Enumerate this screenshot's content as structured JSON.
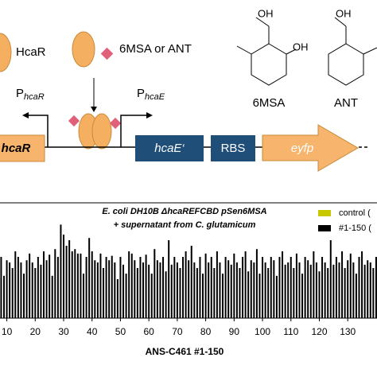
{
  "diagram": {
    "regulator": "HcaR",
    "ligand": "6MSA or ANT",
    "promoter_left": {
      "main": "P",
      "sub": "hcaR"
    },
    "promoter_right": {
      "main": "P",
      "sub": "hcaE"
    },
    "genes": [
      "hcaR",
      "hcaE‘",
      "RBS",
      "eyfp"
    ],
    "compound_1": {
      "hydroxyls": [
        "OH",
        "OH"
      ],
      "name": "6MSA"
    },
    "compound_2": {
      "hydroxyls": [
        "OH"
      ],
      "name": "ANT"
    }
  },
  "chart_data": {
    "type": "bar",
    "title": [
      "E. coli DH10B ΔhcaREFCBD pSen6MSA",
      "+ supernatant from C. glutamicum"
    ],
    "xlabel": "ANS-C461 #1-150",
    "legend": [
      {
        "label": "control (",
        "color": "#c8c800"
      },
      {
        "label": "#1-150 (",
        "color": "#000000"
      }
    ],
    "x": [
      8,
      9,
      10,
      11,
      12,
      13,
      14,
      15,
      16,
      17,
      18,
      19,
      20,
      21,
      22,
      23,
      24,
      25,
      26,
      27,
      28,
      29,
      30,
      31,
      32,
      33,
      34,
      35,
      36,
      37,
      38,
      39,
      40,
      41,
      42,
      43,
      44,
      45,
      46,
      47,
      48,
      49,
      50,
      51,
      52,
      53,
      54,
      55,
      56,
      57,
      58,
      59,
      60,
      61,
      62,
      63,
      64,
      65,
      66,
      67,
      68,
      69,
      70,
      71,
      72,
      73,
      74,
      75,
      76,
      77,
      78,
      79,
      80,
      81,
      82,
      83,
      84,
      85,
      86,
      87,
      88,
      89,
      90,
      91,
      92,
      93,
      94,
      95,
      96,
      97,
      98,
      99,
      100,
      101,
      102,
      103,
      104,
      105,
      106,
      107,
      108,
      109,
      110,
      111,
      112,
      113,
      114,
      115,
      116,
      117,
      118,
      119,
      120,
      121,
      122,
      123,
      124,
      125,
      126,
      127,
      128,
      129,
      130,
      131,
      132,
      133,
      134,
      135,
      136,
      137,
      138,
      139,
      140
    ],
    "values": [
      55,
      38,
      52,
      50,
      45,
      60,
      55,
      50,
      40,
      52,
      58,
      50,
      45,
      55,
      48,
      60,
      52,
      57,
      38,
      62,
      55,
      84,
      75,
      65,
      70,
      60,
      62,
      58,
      58,
      40,
      55,
      72,
      60,
      52,
      50,
      58,
      45,
      55,
      52,
      56,
      50,
      35,
      55,
      48,
      40,
      60,
      58,
      52,
      45,
      55,
      50,
      57,
      48,
      40,
      62,
      52,
      50,
      55,
      42,
      70,
      48,
      55,
      50,
      45,
      55,
      60,
      52,
      65,
      50,
      45,
      55,
      40,
      58,
      50,
      55,
      45,
      60,
      50,
      40,
      55,
      52,
      48,
      58,
      50,
      45,
      55,
      60,
      42,
      52,
      50,
      62,
      40,
      55,
      50,
      45,
      55,
      52,
      38,
      55,
      60,
      48,
      50,
      55,
      45,
      58,
      50,
      40,
      55,
      52,
      48,
      60,
      50,
      42,
      55,
      50,
      45,
      70,
      48,
      55,
      50,
      60,
      45,
      52,
      58,
      50,
      40,
      55,
      60,
      48,
      52,
      50,
      45,
      55
    ],
    "color": "#000000",
    "xlim": [
      7.6,
      140.3
    ],
    "ylim": [
      0,
      100
    ],
    "xticks": [
      10,
      20,
      30,
      40,
      50,
      60,
      70,
      80,
      90,
      100,
      110,
      120,
      130
    ]
  }
}
